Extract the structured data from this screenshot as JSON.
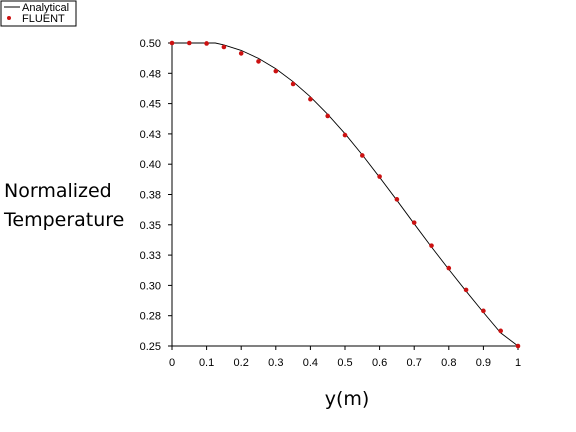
{
  "chart_data": {
    "type": "line",
    "title": "",
    "xlabel": "y(m)",
    "ylabel": "Normalized Temperature",
    "ylabel_lines": [
      "Normalized",
      "Temperature"
    ],
    "xlim": [
      0,
      1
    ],
    "ylim": [
      0.25,
      0.5
    ],
    "grid": false,
    "legend_position": "top-left",
    "x_ticks": [
      0,
      0.1,
      0.2,
      0.3,
      0.4,
      0.5,
      0.6,
      0.7,
      0.8,
      0.9,
      1
    ],
    "x_tick_labels": [
      "0",
      "0.1",
      "0.2",
      "0.3",
      "0.4",
      "0.5",
      "0.6",
      "0.7",
      "0.8",
      "0.9",
      "1"
    ],
    "y_ticks": [
      0.25,
      0.275,
      0.3,
      0.325,
      0.35,
      0.375,
      0.4,
      0.425,
      0.45,
      0.475,
      0.5
    ],
    "y_tick_labels": [
      "0.25",
      "0.28",
      "0.30",
      "0.33",
      "0.35",
      "0.38",
      "0.40",
      "0.43",
      "0.45",
      "0.48",
      "0.50"
    ],
    "series": [
      {
        "name": "Analytical",
        "style": "line",
        "color": "#000000",
        "x": [
          0,
          0.05,
          0.1,
          0.125,
          0.15,
          0.2,
          0.25,
          0.3,
          0.35,
          0.4,
          0.45,
          0.5,
          0.55,
          0.6,
          0.65,
          0.7,
          0.75,
          0.8,
          0.85,
          0.9,
          0.95,
          1.0
        ],
        "y": [
          0.5,
          0.5,
          0.5,
          0.5,
          0.4984,
          0.4939,
          0.4873,
          0.4787,
          0.4681,
          0.4556,
          0.4412,
          0.4252,
          0.4077,
          0.3892,
          0.3702,
          0.3508,
          0.3317,
          0.3132,
          0.2952,
          0.2777,
          0.2608,
          0.25
        ]
      },
      {
        "name": "FLUENT",
        "style": "scatter",
        "color": "#cc1111",
        "x": [
          0,
          0.05,
          0.1,
          0.15,
          0.2,
          0.25,
          0.3,
          0.35,
          0.4,
          0.45,
          0.5,
          0.55,
          0.6,
          0.65,
          0.7,
          0.75,
          0.8,
          0.85,
          0.9,
          0.95,
          1.0
        ],
        "y": [
          0.5,
          0.5,
          0.4996,
          0.4967,
          0.4914,
          0.4848,
          0.4768,
          0.4662,
          0.4536,
          0.4398,
          0.424,
          0.4072,
          0.3898,
          0.371,
          0.3518,
          0.3328,
          0.3143,
          0.2963,
          0.279,
          0.2625,
          0.25
        ]
      }
    ]
  }
}
